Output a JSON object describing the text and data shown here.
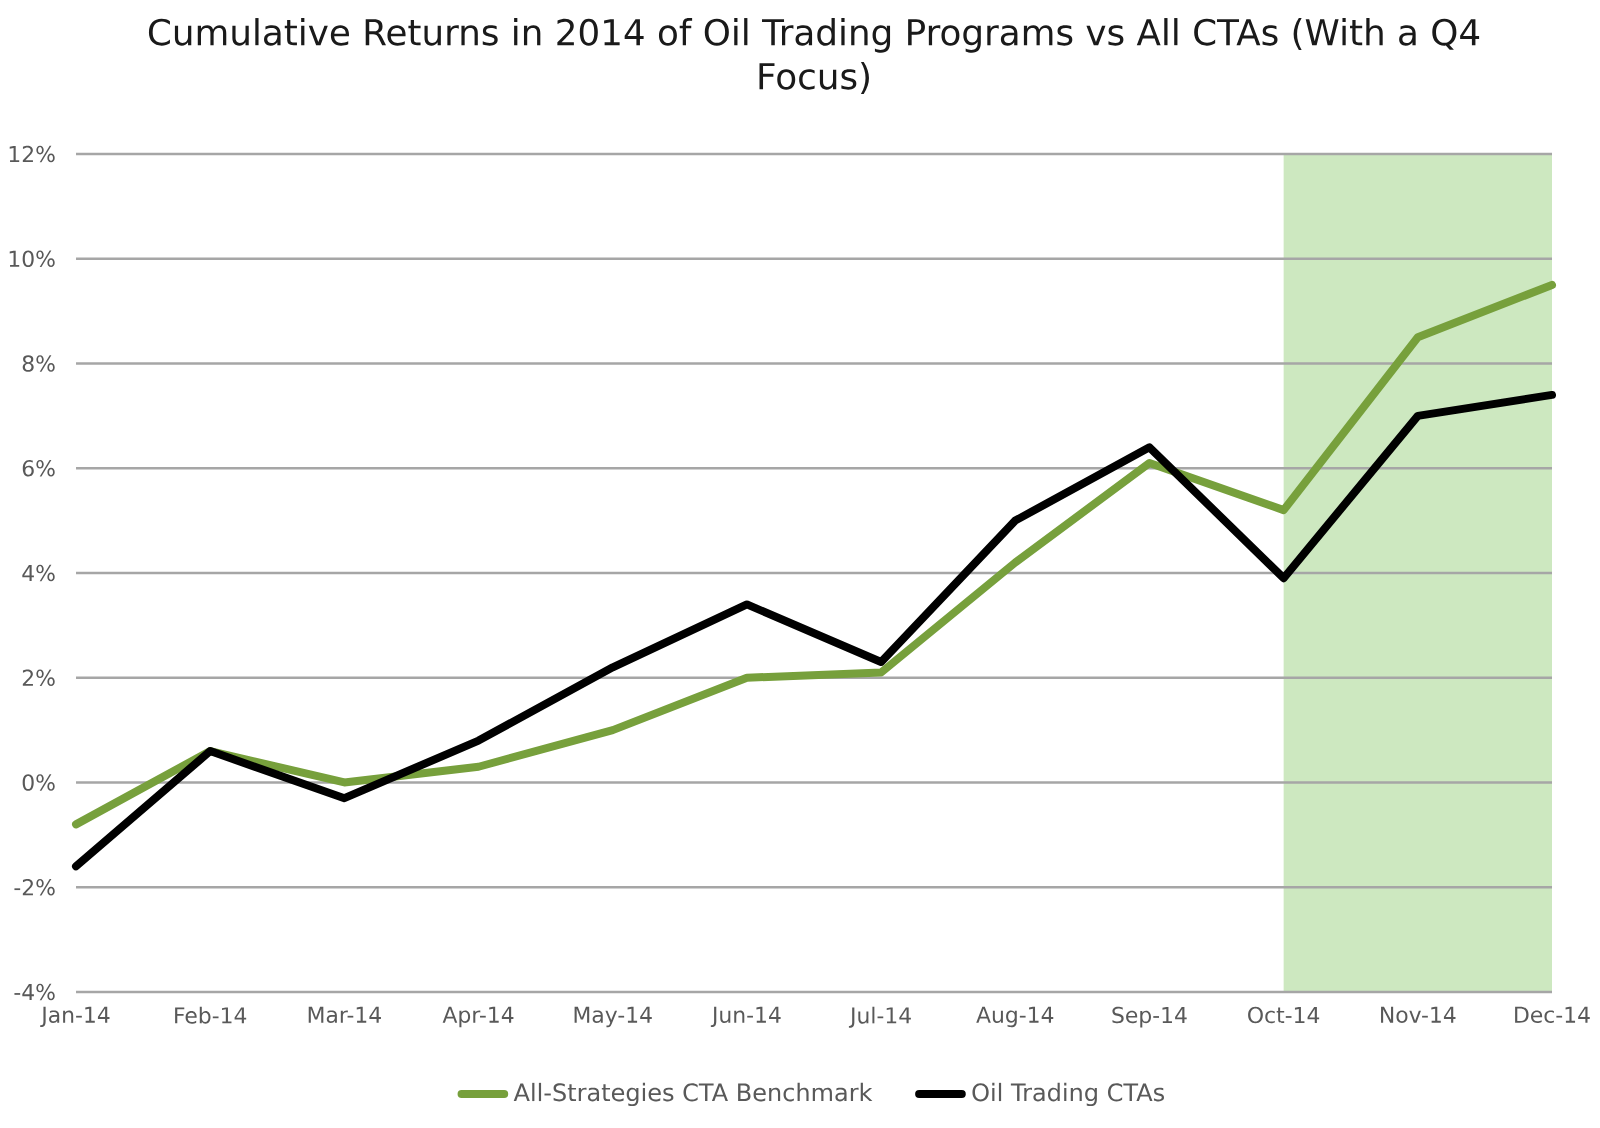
{
  "chart_data": {
    "type": "line",
    "title": "Cumulative Returns in 2014 of Oil Trading Programs vs All CTAs (With a Q4 Focus)",
    "categories": [
      "Jan-14",
      "Feb-14",
      "Mar-14",
      "Apr-14",
      "May-14",
      "Jun-14",
      "Jul-14",
      "Aug-14",
      "Sep-14",
      "Oct-14",
      "Nov-14",
      "Dec-14"
    ],
    "ylim": [
      -4,
      12
    ],
    "yticks": [
      {
        "value": -4,
        "label": "-4%"
      },
      {
        "value": -2,
        "label": "-2%"
      },
      {
        "value": 0,
        "label": "0%"
      },
      {
        "value": 2,
        "label": "2%"
      },
      {
        "value": 4,
        "label": "4%"
      },
      {
        "value": 6,
        "label": "6%"
      },
      {
        "value": 8,
        "label": "8%"
      },
      {
        "value": 10,
        "label": "10%"
      },
      {
        "value": 12,
        "label": "12%"
      }
    ],
    "series": [
      {
        "name": "All-Strategies CTA Benchmark",
        "color": "#77a03c",
        "values": [
          -0.8,
          0.6,
          0.0,
          0.3,
          1.0,
          2.0,
          2.1,
          4.2,
          6.1,
          5.2,
          8.5,
          9.5
        ]
      },
      {
        "name": "Oil Trading CTAs",
        "color": "#000000",
        "values": [
          -1.6,
          0.6,
          -0.3,
          0.8,
          2.2,
          3.4,
          2.3,
          5.0,
          6.4,
          3.9,
          7.0,
          7.4
        ]
      }
    ],
    "bands": [
      {
        "axis": "x",
        "from": "Oct-14",
        "to": "Dec-14",
        "color": "#cde8c0"
      }
    ],
    "grid": "y",
    "legend": "bottom"
  }
}
